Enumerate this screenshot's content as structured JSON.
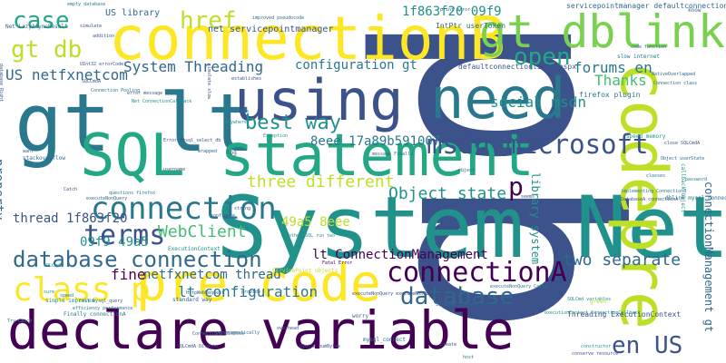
{
  "palette": {
    "dark_purple": "#440154",
    "indigo": "#3b528b",
    "slate_blue": "#31688e",
    "teal_dark": "#2a788e",
    "teal": "#21918c",
    "green_teal": "#22a884",
    "green": "#44bf70",
    "lime": "#7ad151",
    "yellow_green": "#bddf26",
    "yellow": "#fde725"
  },
  "words": [
    {
      "text": "pb",
      "color": "#3b528b"
    },
    {
      "text": "System Net",
      "color": "#21918c"
    },
    {
      "text": "gt lt",
      "color": "#2a788e"
    },
    {
      "text": "SQL statement",
      "color": "#22a884"
    },
    {
      "text": "connectionB",
      "color": "#fde725"
    },
    {
      "text": "declare variable",
      "color": "#440154"
    },
    {
      "text": "pre code",
      "color": "#fde725"
    },
    {
      "text": "codepre",
      "color": "#bddf26"
    },
    {
      "text": "using",
      "color": "#3b528b"
    },
    {
      "text": "need",
      "color": "#2a788e"
    },
    {
      "text": "gt dblink",
      "color": "#7ad151"
    },
    {
      "text": "msdn microsoft",
      "color": "#3b528b"
    },
    {
      "text": "connection",
      "color": "#2a788e"
    },
    {
      "text": "database connection",
      "color": "#31688e"
    },
    {
      "text": "connectionA",
      "color": "#440154"
    },
    {
      "text": "class p",
      "color": "#fde725"
    },
    {
      "text": "database",
      "color": "#31688e"
    },
    {
      "text": "open",
      "color": "#22a884"
    },
    {
      "text": "best way",
      "color": "#21918c"
    },
    {
      "text": "terms",
      "color": "#3b528b"
    },
    {
      "text": "en US",
      "color": "#3b528b"
    },
    {
      "text": "case",
      "color": "#22a884"
    },
    {
      "text": "href",
      "color": "#bddf26"
    },
    {
      "text": "gt db",
      "color": "#bddf26"
    },
    {
      "text": "p",
      "color": "#440154"
    },
    {
      "text": "two separate",
      "color": "#31688e"
    },
    {
      "text": "three different",
      "color": "#bddf26"
    },
    {
      "text": "Object state",
      "color": "#21918c"
    },
    {
      "text": "WebClient",
      "color": "#44bf70"
    },
    {
      "text": "lt configuration",
      "color": "#2a788e"
    },
    {
      "text": "fine",
      "color": "#440154"
    },
    {
      "text": "netfxnetcom thread",
      "color": "#31688e"
    },
    {
      "text": "lt ConnectionManagement",
      "color": "#440154"
    },
    {
      "text": "thread 1f863f20",
      "color": "#3b528b"
    },
    {
      "text": "09f9 49a5",
      "color": "#21918c"
    },
    {
      "text": "49a5 8eee",
      "color": "#bddf26"
    },
    {
      "text": "8eee 17a89b591007",
      "color": "#2a788e"
    },
    {
      "text": "System Threading",
      "color": "#31688e"
    },
    {
      "text": "configuration gt",
      "color": "#2a788e"
    },
    {
      "text": "1f863f20 09f9",
      "color": "#21918c"
    },
    {
      "text": "US netfxnetcom",
      "color": "#31688e"
    },
    {
      "text": "social msdn",
      "color": "#21918c"
    },
    {
      "text": "forums en",
      "color": "#2a788e"
    },
    {
      "text": "Thanks",
      "color": "#44bf70"
    },
    {
      "text": "US library",
      "color": "#31688e"
    },
    {
      "text": "net servicepointmanager",
      "color": "#3b528b"
    },
    {
      "text": "library system",
      "color": "#21918c"
    },
    {
      "text": "connectionManagement gt",
      "color": "#31688e"
    },
    {
      "text": "property",
      "color": "#31688e"
    },
    {
      "text": "servicepointmanager defaultconnectionlimit",
      "color": "#31688e"
    },
    {
      "text": "defaultconnectionlimit aspx",
      "color": "#3b528b"
    },
    {
      "text": "ExecutionContext",
      "color": "#21918c"
    },
    {
      "text": "firefox plugin",
      "color": "#2a788e"
    },
    {
      "text": "Threading ExecutionContext",
      "color": "#3b528b"
    },
    {
      "text": "Net LazyAsyncResult",
      "color": "#31688e"
    },
    {
      "text": "IntPtr userToken",
      "color": "#31688e"
    },
    {
      "text": "SQLCmdA",
      "color": "#3b528b"
    },
    {
      "text": "mysql_connect",
      "color": "#31688e"
    },
    {
      "text": "callback Object",
      "color": "#21918c"
    },
    {
      "text": "error message",
      "color": "#3b528b"
    },
    {
      "text": "simple improved",
      "color": "#21918c"
    },
    {
      "text": "Catch",
      "color": "#3b528b"
    },
    {
      "text": "UInt32 numBytes",
      "color": "#3b528b"
    },
    {
      "text": "executeNonQuery",
      "color": "#31688e"
    },
    {
      "text": "Connection Pooling",
      "color": "#2a788e"
    },
    {
      "text": "improved pseudocode",
      "color": "#31688e"
    },
    {
      "text": "slow internet",
      "color": "#2a788e"
    },
    {
      "text": "efficiency performance",
      "color": "#2a788e"
    },
    {
      "text": "internet connection",
      "color": "#31688e"
    },
    {
      "text": "SQLCmd variables",
      "color": "#21918c"
    },
    {
      "text": "UInt32 errorCode",
      "color": "#3b528b"
    },
    {
      "text": "Fatal Error",
      "color": "#440154"
    },
    {
      "text": "questions firefox",
      "color": "#2a788e"
    },
    {
      "text": "standard way",
      "color": "#31688e"
    },
    {
      "text": "HttpWebRequest",
      "color": "#31688e"
    },
    {
      "text": "close SQLCmdA",
      "color": "#3b528b"
    },
    {
      "text": "Object userState",
      "color": "#31688e"
    },
    {
      "text": "dblink mysql_connect",
      "color": "#2a788e"
    },
    {
      "text": "another SQL run two",
      "color": "#21918c"
    },
    {
      "text": "ServicePoint objects",
      "color": "#bddf26"
    },
    {
      "text": "want",
      "color": "#3b528b"
    },
    {
      "text": "stackoverflow",
      "color": "#31688e"
    },
    {
      "text": "empty database",
      "color": "#2a788e"
    },
    {
      "text": "DatabaseA connectionA",
      "color": "#3b528b"
    },
    {
      "text": "implementing ConnectionB",
      "color": "#2a788e"
    },
    {
      "text": "conserve resource",
      "color": "#3b528b"
    },
    {
      "text": "NativeOverlapped",
      "color": "#31688e"
    },
    {
      "text": "SQLCmdA Dispose",
      "color": "#3b528b"
    },
    {
      "text": "Try Catch",
      "color": "#21918c"
    },
    {
      "text": "Finally connectionA",
      "color": "#2a788e"
    },
    {
      "text": "programmatically",
      "color": "#31688e"
    },
    {
      "text": "anywhere",
      "color": "#21918c"
    },
    {
      "text": "speed memory",
      "color": "#21918c"
    },
    {
      "text": "log",
      "color": "#3b528b"
    },
    {
      "text": "username",
      "color": "#3b528b"
    },
    {
      "text": "classes",
      "color": "#2a788e"
    },
    {
      "text": "password",
      "color": "#2a788e"
    },
    {
      "text": "worry",
      "color": "#31688e"
    },
    {
      "text": "constructor",
      "color": "#21918c"
    },
    {
      "text": "wrapped",
      "color": "#31688e"
    },
    {
      "text": "message Finally",
      "color": "#31688e"
    },
    {
      "text": "call mysql_query",
      "color": "#31688e"
    },
    {
      "text": "Error mysql_select_db",
      "color": "#3b528b"
    },
    {
      "text": "executeNonQuery Catch",
      "color": "#2a788e"
    },
    {
      "text": "ConnectionB Dispose",
      "color": "#31688e"
    },
    {
      "text": "SQLCmdB",
      "color": "#21918c"
    },
    {
      "text": "thread close",
      "color": "#3b528b"
    },
    {
      "text": "Connection class",
      "color": "#31688e"
    },
    {
      "text": "establishes",
      "color": "#3b528b"
    },
    {
      "text": "simulate",
      "color": "#3b528b"
    },
    {
      "text": "addition",
      "color": "#3b528b"
    },
    {
      "text": "Complete",
      "color": "#2a788e"
    },
    {
      "text": "Exception",
      "color": "#21918c"
    },
    {
      "text": "create",
      "color": "#3b528b"
    },
    {
      "text": "host",
      "color": "#2a788e"
    },
    {
      "text": "string",
      "color": "#3b528b"
    },
    {
      "text": "sure",
      "color": "#21918c"
    },
    {
      "text": "green",
      "color": "#bddf26"
    },
    {
      "text": "know",
      "color": "#31688e"
    },
    {
      "text": "simulate slow",
      "color": "#3b528b"
    },
    {
      "text": "provide",
      "color": "#31688e"
    },
    {
      "text": "speed",
      "color": "#2a788e"
    },
    {
      "text": "executeNonQuery executeNonQuery",
      "color": "#3b528b"
    },
    {
      "text": "Net ConnectionCallback",
      "color": "#21918c"
    },
    {
      "text": "database Right",
      "color": "#3b528b"
    },
    {
      "text": "code function",
      "color": "#31688e"
    },
    {
      "text": "object",
      "color": "#31688e"
    },
    {
      "text": "configure",
      "color": "#3b528b"
    },
    {
      "text": "seems",
      "color": "#3b528b"
    },
    {
      "text": "print error",
      "color": "#31688e"
    },
    {
      "text": "overhead",
      "color": "#3b528b"
    },
    {
      "text": "executionContext ConnectionCallback",
      "color": "#21918c"
    }
  ]
}
